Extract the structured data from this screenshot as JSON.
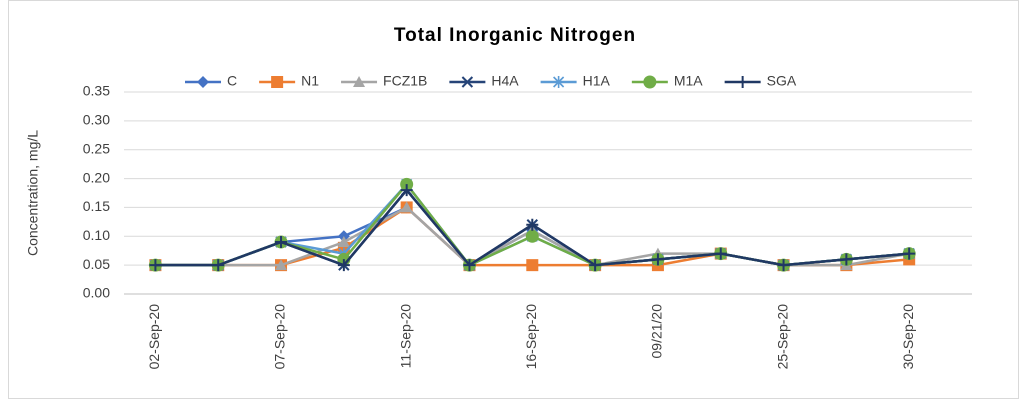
{
  "chart_data": {
    "type": "line",
    "title": "Total Inorganic Nitrogen",
    "y_label": "Concentration, mg/L",
    "categories": [
      "02-Sep-20",
      null,
      "07-Sep-20",
      null,
      "11-Sep-20",
      null,
      "16-Sep-20",
      null,
      "09/21/20",
      null,
      "25-Sep-20",
      null,
      "30-Sep-20"
    ],
    "series": [
      {
        "name": "C",
        "color": "#4472c4",
        "marker": "diamond",
        "values": [
          0.05,
          0.05,
          0.09,
          0.1,
          0.15,
          0.05,
          0.11,
          0.05,
          0.06,
          0.07,
          0.05,
          0.06,
          0.07
        ]
      },
      {
        "name": "N1",
        "color": "#ed7d31",
        "marker": "square",
        "values": [
          0.05,
          0.05,
          0.05,
          0.08,
          0.15,
          0.05,
          0.05,
          0.05,
          0.05,
          0.07,
          0.05,
          0.05,
          0.06
        ]
      },
      {
        "name": "FCZ1B",
        "color": "#a5a5a5",
        "marker": "triangle",
        "values": [
          0.05,
          0.05,
          0.05,
          0.09,
          0.15,
          0.05,
          0.11,
          0.05,
          0.07,
          0.07,
          0.05,
          0.05,
          0.07
        ]
      },
      {
        "name": "H4A",
        "color": "#264478",
        "marker": "x",
        "values": [
          0.05,
          0.05,
          0.09,
          0.05,
          0.18,
          0.05,
          0.12,
          0.05,
          0.06,
          0.07,
          0.05,
          0.06,
          0.07
        ]
      },
      {
        "name": "H1A",
        "color": "#5b9bd5",
        "marker": "asterisk",
        "values": [
          0.05,
          0.05,
          0.09,
          0.07,
          0.19,
          0.05,
          0.1,
          0.05,
          0.06,
          0.07,
          0.05,
          0.06,
          0.07
        ]
      },
      {
        "name": "M1A",
        "color": "#70ad47",
        "marker": "circle",
        "values": [
          0.05,
          0.05,
          0.09,
          0.06,
          0.19,
          0.05,
          0.1,
          0.05,
          0.06,
          0.07,
          0.05,
          0.06,
          0.07
        ]
      },
      {
        "name": "SGA",
        "color": "#203864",
        "marker": "plus",
        "values": [
          0.05,
          0.05,
          0.09,
          0.05,
          0.18,
          0.05,
          0.12,
          0.05,
          0.06,
          0.07,
          0.05,
          0.06,
          0.07
        ]
      }
    ],
    "ylim": [
      0,
      0.35
    ],
    "yticks": [
      {
        "value": 0,
        "label": "0.00"
      },
      {
        "value": 0.05,
        "label": "0.05"
      },
      {
        "value": 0.1,
        "label": "0.10"
      },
      {
        "value": 0.15,
        "label": "0.15"
      },
      {
        "value": 0.2,
        "label": "0.20"
      },
      {
        "value": 0.25,
        "label": "0.25"
      },
      {
        "value": 0.3,
        "label": "0.30"
      },
      {
        "value": 0.35,
        "label": "0.35"
      }
    ],
    "grid": true,
    "legend": "top"
  }
}
